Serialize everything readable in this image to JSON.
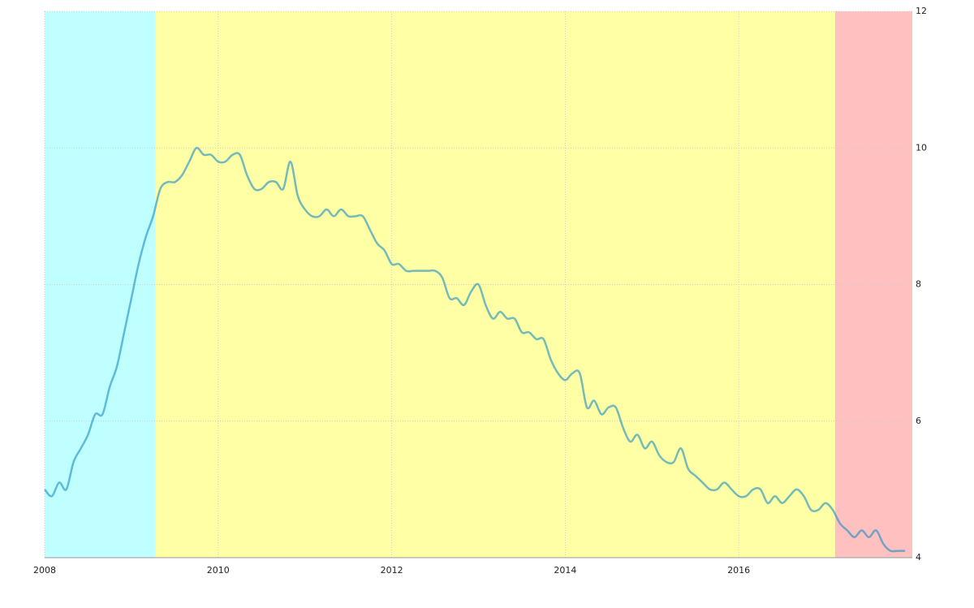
{
  "chart_data": {
    "type": "line",
    "x": [
      2008.0,
      2008.083,
      2008.167,
      2008.25,
      2008.333,
      2008.417,
      2008.5,
      2008.583,
      2008.667,
      2008.75,
      2008.833,
      2008.917,
      2009.0,
      2009.083,
      2009.167,
      2009.25,
      2009.333,
      2009.417,
      2009.5,
      2009.583,
      2009.667,
      2009.75,
      2009.833,
      2009.917,
      2010.0,
      2010.083,
      2010.167,
      2010.25,
      2010.333,
      2010.417,
      2010.5,
      2010.583,
      2010.667,
      2010.75,
      2010.833,
      2010.917,
      2011.0,
      2011.083,
      2011.167,
      2011.25,
      2011.333,
      2011.417,
      2011.5,
      2011.583,
      2011.667,
      2011.75,
      2011.833,
      2011.917,
      2012.0,
      2012.083,
      2012.167,
      2012.25,
      2012.333,
      2012.417,
      2012.5,
      2012.583,
      2012.667,
      2012.75,
      2012.833,
      2012.917,
      2013.0,
      2013.083,
      2013.167,
      2013.25,
      2013.333,
      2013.417,
      2013.5,
      2013.583,
      2013.667,
      2013.75,
      2013.833,
      2013.917,
      2014.0,
      2014.083,
      2014.167,
      2014.25,
      2014.333,
      2014.417,
      2014.5,
      2014.583,
      2014.667,
      2014.75,
      2014.833,
      2014.917,
      2015.0,
      2015.083,
      2015.167,
      2015.25,
      2015.333,
      2015.417,
      2015.5,
      2015.583,
      2015.667,
      2015.75,
      2015.833,
      2015.917,
      2016.0,
      2016.083,
      2016.167,
      2016.25,
      2016.333,
      2016.417,
      2016.5,
      2016.583,
      2016.667,
      2016.75,
      2016.833,
      2016.917,
      2017.0,
      2017.083,
      2017.167,
      2017.25,
      2017.333,
      2017.417,
      2017.5,
      2017.583,
      2017.667,
      2017.75,
      2017.833,
      2017.917
    ],
    "series": [
      {
        "color": "#1f8fc4",
        "values": [
          5.0,
          4.9,
          5.1,
          5.0,
          5.4,
          5.6,
          5.8,
          6.1,
          6.1,
          6.5,
          6.8,
          7.3,
          7.8,
          8.3,
          8.7,
          9.0,
          9.4,
          9.5,
          9.5,
          9.6,
          9.8,
          10.0,
          9.9,
          9.9,
          9.8,
          9.8,
          9.9,
          9.9,
          9.6,
          9.4,
          9.4,
          9.5,
          9.5,
          9.4,
          9.8,
          9.3,
          9.1,
          9.0,
          9.0,
          9.1,
          9.0,
          9.1,
          9.0,
          9.0,
          9.0,
          8.8,
          8.6,
          8.5,
          8.3,
          8.3,
          8.2,
          8.2,
          8.2,
          8.2,
          8.2,
          8.1,
          7.8,
          7.8,
          7.7,
          7.9,
          8.0,
          7.7,
          7.5,
          7.6,
          7.5,
          7.5,
          7.3,
          7.3,
          7.2,
          7.2,
          6.9,
          6.7,
          6.6,
          6.7,
          6.7,
          6.2,
          6.3,
          6.1,
          6.2,
          6.2,
          5.9,
          5.7,
          5.8,
          5.6,
          5.7,
          5.5,
          5.4,
          5.4,
          5.6,
          5.3,
          5.2,
          5.1,
          5.0,
          5.0,
          5.1,
          5.0,
          4.9,
          4.9,
          5.0,
          5.0,
          4.8,
          4.9,
          4.8,
          4.9,
          5.0,
          4.9,
          4.7,
          4.7,
          4.8,
          4.7,
          4.5,
          4.4,
          4.3,
          4.4,
          4.3,
          4.4,
          4.2,
          4.1,
          4.1,
          4.1
        ]
      }
    ],
    "bands": [
      {
        "start": 2008,
        "end": 2009.28,
        "color": "#c0ffff"
      },
      {
        "start": 2009.28,
        "end": 2017.11,
        "color": "#ffffa6"
      },
      {
        "start": 2017.11,
        "end": 2018,
        "color": "#ffc0c0"
      }
    ],
    "xlim": [
      2008,
      2018
    ],
    "ylim": [
      4,
      12
    ],
    "xticks": [
      2008,
      2010,
      2012,
      2014,
      2016
    ],
    "yticks": [
      4,
      6,
      8,
      10,
      12
    ],
    "grid": true
  }
}
